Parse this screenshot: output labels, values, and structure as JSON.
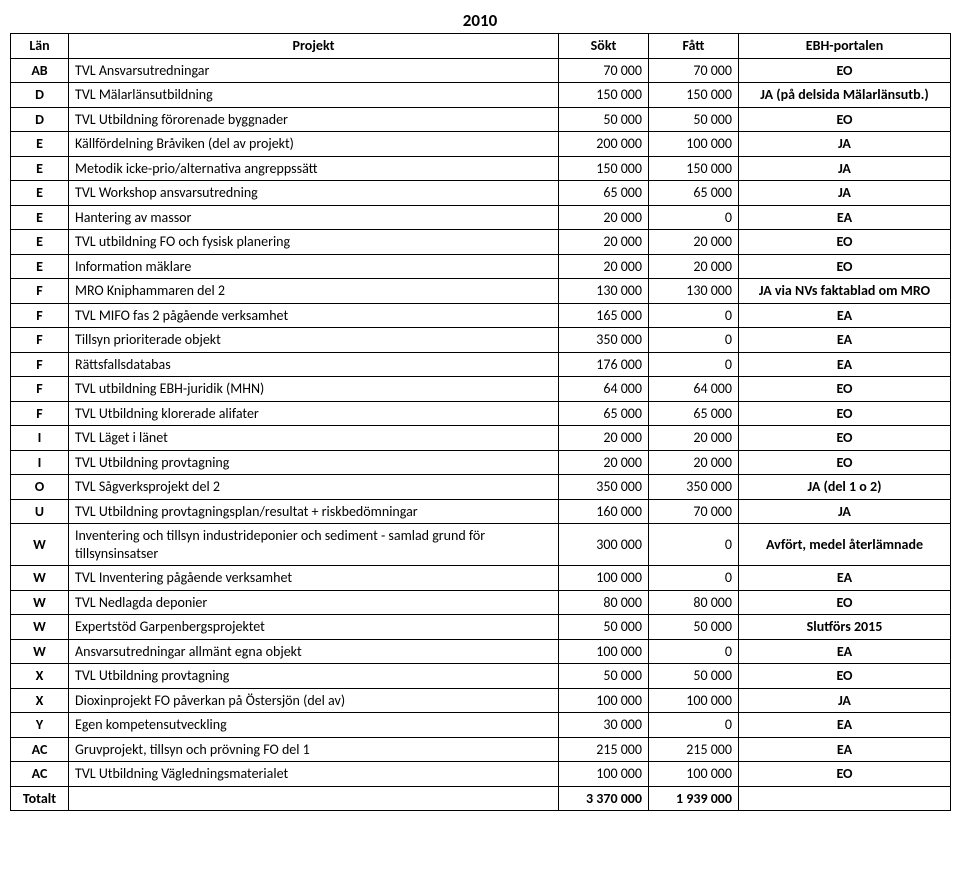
{
  "title": "2010",
  "columns": {
    "lan": "Län",
    "projekt": "Projekt",
    "sokt": "Sökt",
    "fatt": "Fått",
    "ebh": "EBH-portalen"
  },
  "rows": [
    {
      "lan": "AB",
      "projekt": "TVL Ansvarsutredningar",
      "sokt": "70 000",
      "fatt": "70 000",
      "ebh": "EO",
      "ebh_bold": true
    },
    {
      "lan": "D",
      "projekt": "TVL Mälarlänsutbildning",
      "sokt": "150 000",
      "fatt": "150 000",
      "ebh": "JA (på delsida Mälarlänsutb.)",
      "ebh_bold": true
    },
    {
      "lan": "D",
      "projekt": "TVL Utbildning förorenade byggnader",
      "sokt": "50 000",
      "fatt": "50 000",
      "ebh": "EO",
      "ebh_bold": true
    },
    {
      "lan": "E",
      "projekt": "Källfördelning Bråviken (del av projekt)",
      "sokt": "200 000",
      "fatt": "100 000",
      "ebh": "JA",
      "ebh_bold": true
    },
    {
      "lan": "E",
      "projekt": "Metodik icke-prio/alternativa angreppssätt",
      "sokt": "150 000",
      "fatt": "150 000",
      "ebh": "JA",
      "ebh_bold": true
    },
    {
      "lan": "E",
      "projekt": "TVL Workshop ansvarsutredning",
      "sokt": "65 000",
      "fatt": "65 000",
      "ebh": "JA",
      "ebh_bold": true
    },
    {
      "lan": "E",
      "projekt": "Hantering av massor",
      "sokt": "20 000",
      "fatt": "0",
      "ebh": "EA",
      "ebh_bold": true
    },
    {
      "lan": "E",
      "projekt": "TVL utbildning FO och fysisk planering",
      "sokt": "20 000",
      "fatt": "20 000",
      "ebh": "EO",
      "ebh_bold": true
    },
    {
      "lan": "E",
      "projekt": "Information mäklare",
      "sokt": "20 000",
      "fatt": "20 000",
      "ebh": "EO",
      "ebh_bold": true
    },
    {
      "lan": "F",
      "projekt": "MRO Kniphammaren del 2",
      "sokt": "130 000",
      "fatt": "130 000",
      "ebh": "JA via NVs faktablad om MRO",
      "ebh_bold": true
    },
    {
      "lan": "F",
      "projekt": "TVL MIFO fas 2 pågående verksamhet",
      "sokt": "165 000",
      "fatt": "0",
      "ebh": "EA",
      "ebh_bold": true
    },
    {
      "lan": "F",
      "projekt": "Tillsyn prioriterade objekt",
      "sokt": "350 000",
      "fatt": "0",
      "ebh": "EA",
      "ebh_bold": true
    },
    {
      "lan": "F",
      "projekt": "Rättsfallsdatabas",
      "sokt": "176 000",
      "fatt": "0",
      "ebh": "EA",
      "ebh_bold": true
    },
    {
      "lan": "F",
      "projekt": "TVL utbildning EBH-juridik (MHN)",
      "sokt": "64 000",
      "fatt": "64 000",
      "ebh": "EO",
      "ebh_bold": true
    },
    {
      "lan": "F",
      "projekt": "TVL Utbildning klorerade alifater",
      "sokt": "65 000",
      "fatt": "65 000",
      "ebh": "EO",
      "ebh_bold": true
    },
    {
      "lan": "I",
      "projekt": "TVL Läget i länet",
      "sokt": "20 000",
      "fatt": "20 000",
      "ebh": "EO",
      "ebh_bold": true
    },
    {
      "lan": "I",
      "projekt": "TVL Utbildning provtagning",
      "sokt": "20 000",
      "fatt": "20 000",
      "ebh": "EO",
      "ebh_bold": true
    },
    {
      "lan": "O",
      "projekt": "TVL Sågverksprojekt del 2",
      "sokt": "350 000",
      "fatt": "350 000",
      "ebh": "JA (del 1 o 2)",
      "ebh_bold": true
    },
    {
      "lan": "U",
      "projekt": "TVL Utbildning provtagningsplan/resultat + riskbedömningar",
      "sokt": "160 000",
      "fatt": "70 000",
      "ebh": "JA",
      "ebh_bold": true
    },
    {
      "lan": "W",
      "projekt": "Inventering och tillsyn industrideponier och sediment - samlad grund för tillsynsinsatser",
      "sokt": "300 000",
      "fatt": "0",
      "ebh": "Avfört, medel återlämnade",
      "ebh_bold": true
    },
    {
      "lan": "W",
      "projekt": "TVL Inventering pågående verksamhet",
      "sokt": "100 000",
      "fatt": "0",
      "ebh": "EA",
      "ebh_bold": true
    },
    {
      "lan": "W",
      "projekt": "TVL Nedlagda deponier",
      "sokt": "80 000",
      "fatt": "80 000",
      "ebh": "EO",
      "ebh_bold": true
    },
    {
      "lan": "W",
      "projekt": "Expertstöd Garpenbergsprojektet",
      "sokt": "50 000",
      "fatt": "50 000",
      "ebh": "Slutförs 2015",
      "ebh_bold": true
    },
    {
      "lan": "W",
      "projekt": "Ansvarsutredningar allmänt egna objekt",
      "sokt": "100 000",
      "fatt": "0",
      "ebh": "EA",
      "ebh_bold": true
    },
    {
      "lan": "X",
      "projekt": "TVL Utbildning provtagning",
      "sokt": "50 000",
      "fatt": "50 000",
      "ebh": "EO",
      "ebh_bold": true
    },
    {
      "lan": "X",
      "projekt": "Dioxinprojekt FO påverkan på Östersjön (del av)",
      "sokt": "100 000",
      "fatt": "100 000",
      "ebh": "JA",
      "ebh_bold": true
    },
    {
      "lan": "Y",
      "projekt": "Egen kompetensutveckling",
      "sokt": "30 000",
      "fatt": "0",
      "ebh": "EA",
      "ebh_bold": true
    },
    {
      "lan": "AC",
      "projekt": "Gruvprojekt, tillsyn och prövning FO del 1",
      "sokt": "215 000",
      "fatt": "215 000",
      "ebh": "EA",
      "ebh_bold": true
    },
    {
      "lan": "AC",
      "projekt": "TVL Utbildning Vägledningsmaterialet",
      "sokt": "100 000",
      "fatt": "100 000",
      "ebh": "EO",
      "ebh_bold": true
    }
  ],
  "total": {
    "label": "Totalt",
    "projekt": "",
    "sokt": "3 370 000",
    "fatt": "1 939 000",
    "ebh": ""
  }
}
